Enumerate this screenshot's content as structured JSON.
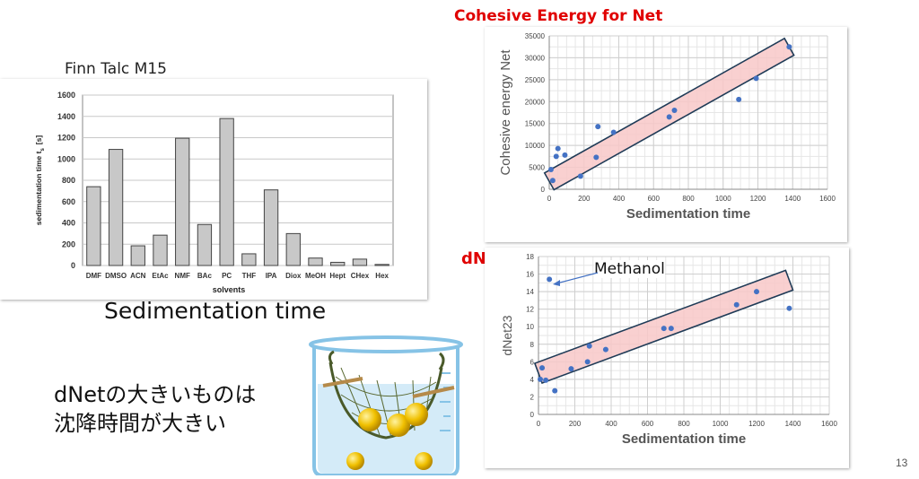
{
  "slide": {
    "page_number": "13",
    "finn_label": "Finn Talc M15",
    "bar_caption": "Sedimentation time",
    "note_line1": "dNetの大きいものは",
    "note_line2": "沈降時間が大きい",
    "cohesive_title": "Cohesive Energy for Net",
    "dnet_title": "dNet",
    "methanol_label": "Methanol"
  },
  "chart_data": [
    {
      "type": "bar",
      "title": "",
      "categories": [
        "DMF",
        "DMSO",
        "ACN",
        "EtAc",
        "NMF",
        "BAc",
        "PC",
        "THF",
        "IPA",
        "Diox",
        "MeOH",
        "Hept",
        "CHex",
        "Hex"
      ],
      "values": [
        740,
        1090,
        185,
        285,
        1195,
        385,
        1380,
        110,
        710,
        300,
        70,
        30,
        60,
        10
      ],
      "xlabel": "solvents",
      "ylabel": "sedimentation time  t",
      "ylabel_sub": "s",
      "ylabel_unit": "[s]",
      "ylim": [
        0,
        1600
      ],
      "yticks": [
        0,
        200,
        400,
        600,
        800,
        1000,
        1200,
        1400,
        1600
      ],
      "bar_color": "#c8c8c8",
      "grid": true
    },
    {
      "type": "scatter",
      "title": "",
      "xlabel": "Sedimentation time",
      "ylabel": "Cohesive energy Net",
      "xlim": [
        0,
        1600
      ],
      "ylim": [
        0,
        35000
      ],
      "xticks": [
        0,
        200,
        400,
        600,
        800,
        1000,
        1200,
        1400,
        1600
      ],
      "yticks": [
        0,
        5000,
        10000,
        15000,
        20000,
        25000,
        30000,
        35000
      ],
      "band": {
        "from": [
          0,
          1800
        ],
        "to": [
          1380,
          32500
        ],
        "half_width": 2200
      },
      "points": [
        [
          10,
          4500
        ],
        [
          20,
          2000
        ],
        [
          40,
          7500
        ],
        [
          50,
          9300
        ],
        [
          90,
          7800
        ],
        [
          180,
          3000
        ],
        [
          270,
          7300
        ],
        [
          280,
          14300
        ],
        [
          370,
          13000
        ],
        [
          690,
          16500
        ],
        [
          720,
          18000
        ],
        [
          1090,
          20500
        ],
        [
          1190,
          25300
        ],
        [
          1380,
          32500
        ]
      ],
      "point_color": "#4472c4",
      "band_fill": "#f8c8c8",
      "band_edge": "#1f3b57",
      "grid": true
    },
    {
      "type": "scatter",
      "title": "",
      "xlabel": "Sedimentation time",
      "ylabel": "dNet23",
      "xlim": [
        0,
        1600
      ],
      "ylim": [
        0,
        18
      ],
      "xticks": [
        0,
        200,
        400,
        600,
        800,
        1000,
        1200,
        1400,
        1600
      ],
      "yticks": [
        0,
        2,
        4,
        6,
        8,
        10,
        12,
        14,
        16,
        18
      ],
      "band": {
        "from": [
          0,
          4.7
        ],
        "to": [
          1380,
          15.3
        ],
        "half_width": 1.2
      },
      "points": [
        [
          10,
          4.0
        ],
        [
          20,
          5.3
        ],
        [
          40,
          3.9
        ],
        [
          60,
          15.4
        ],
        [
          90,
          2.7
        ],
        [
          180,
          5.2
        ],
        [
          270,
          6.0
        ],
        [
          280,
          7.8
        ],
        [
          370,
          7.4
        ],
        [
          690,
          9.8
        ],
        [
          730,
          9.8
        ],
        [
          1090,
          12.5
        ],
        [
          1200,
          14.0
        ],
        [
          1380,
          12.1
        ]
      ],
      "point_color": "#4472c4",
      "band_fill": "#f8c8c8",
      "band_edge": "#1f3b57",
      "grid": true
    }
  ]
}
